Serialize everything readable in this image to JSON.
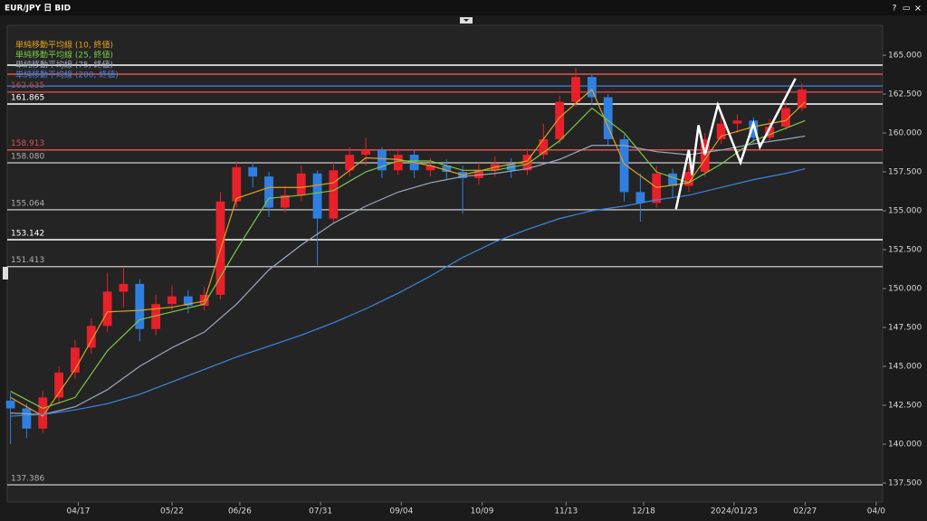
{
  "chart_data": {
    "type": "candlestick",
    "title": "EUR/JPY 日 BID",
    "window_buttons": [
      "?",
      "▭",
      "×"
    ],
    "xlim": [
      -1,
      270
    ],
    "ylim": [
      136.28,
      166.92
    ],
    "yticks": [
      {
        "value": 137.5,
        "label": "137.500"
      },
      {
        "value": 140,
        "label": "140.000"
      },
      {
        "value": 142.5,
        "label": "142.500"
      },
      {
        "value": 145,
        "label": "145.000"
      },
      {
        "value": 147.5,
        "label": "147.500"
      },
      {
        "value": 150,
        "label": "150.000"
      },
      {
        "value": 152.5,
        "label": "152.500"
      },
      {
        "value": 155,
        "label": "155.000"
      },
      {
        "value": 157.5,
        "label": "157.500"
      },
      {
        "value": 160,
        "label": "160.000"
      },
      {
        "value": 162.5,
        "label": "162.500"
      },
      {
        "value": 165,
        "label": "165.000"
      }
    ],
    "xticks": [
      {
        "value": 21,
        "label": "04/17"
      },
      {
        "value": 50,
        "label": "05/22"
      },
      {
        "value": 71,
        "label": "06/26"
      },
      {
        "value": 96,
        "label": "07/31"
      },
      {
        "value": 121,
        "label": "09/04"
      },
      {
        "value": 146,
        "label": "10/09"
      },
      {
        "value": 172,
        "label": "11/13"
      },
      {
        "value": 196,
        "label": "12/18"
      },
      {
        "value": 224,
        "label": "2024/01/23"
      },
      {
        "value": 246,
        "label": "02/27"
      },
      {
        "value": 268,
        "label": "04/0"
      }
    ],
    "up_color": "#e8202a",
    "down_color": "#2f7fe0",
    "candles": {
      "x": [
        0,
        5,
        10,
        15,
        20,
        25,
        30,
        35,
        40,
        45,
        50,
        55,
        60,
        65,
        70,
        75,
        80,
        85,
        90,
        95,
        100,
        105,
        110,
        115,
        120,
        125,
        130,
        135,
        140,
        145,
        150,
        155,
        160,
        165,
        170,
        175,
        180,
        185,
        190,
        195,
        200,
        205,
        210,
        215,
        220,
        225,
        230,
        235,
        240,
        245
      ],
      "open": [
        142.8,
        142.3,
        141.0,
        143.0,
        144.6,
        146.2,
        147.6,
        149.8,
        150.3,
        147.4,
        149.0,
        149.5,
        148.9,
        149.6,
        155.6,
        157.8,
        157.2,
        155.2,
        156.0,
        157.4,
        154.5,
        157.6,
        158.6,
        158.9,
        157.6,
        158.6,
        157.6,
        157.9,
        157.5,
        157.1,
        157.6,
        158.0,
        157.6,
        158.6,
        159.6,
        162.0,
        163.6,
        162.3,
        159.6,
        156.2,
        155.5,
        157.4,
        156.6,
        157.5,
        159.6,
        160.6,
        160.8,
        159.7,
        160.4,
        161.6
      ],
      "high": [
        143.3,
        142.6,
        143.4,
        145.0,
        146.7,
        148.1,
        151.0,
        151.4,
        150.6,
        149.6,
        150.2,
        149.9,
        150.1,
        156.2,
        158.2,
        158.1,
        157.5,
        156.6,
        157.9,
        157.6,
        158.1,
        159.1,
        159.7,
        159.1,
        159.0,
        158.9,
        158.4,
        158.3,
        157.9,
        158.1,
        158.5,
        158.4,
        159.0,
        160.6,
        162.4,
        164.2,
        163.8,
        162.5,
        159.9,
        157.4,
        157.9,
        157.7,
        158.0,
        160.0,
        161.3,
        161.2,
        161.0,
        160.9,
        162.0,
        163.2
      ],
      "low": [
        140.0,
        140.4,
        140.7,
        142.6,
        144.2,
        145.8,
        147.2,
        148.8,
        146.6,
        147.0,
        148.6,
        148.4,
        148.6,
        149.3,
        155.2,
        156.5,
        154.6,
        154.9,
        155.6,
        151.5,
        154.2,
        157.2,
        157.9,
        157.1,
        157.3,
        157.1,
        157.2,
        157.0,
        154.8,
        156.7,
        157.2,
        157.1,
        157.3,
        158.3,
        159.3,
        161.7,
        161.8,
        159.2,
        155.6,
        154.3,
        155.2,
        155.8,
        156.2,
        157.2,
        159.3,
        160.0,
        159.3,
        159.4,
        160.2,
        161.4
      ],
      "close": [
        142.3,
        141.0,
        143.0,
        144.6,
        146.2,
        147.6,
        149.8,
        150.3,
        147.4,
        149.0,
        149.5,
        148.9,
        149.6,
        155.6,
        157.8,
        157.2,
        155.2,
        156.0,
        157.4,
        154.5,
        157.6,
        158.6,
        158.9,
        157.6,
        158.6,
        157.6,
        157.9,
        157.5,
        157.1,
        157.6,
        158.0,
        157.6,
        158.6,
        159.6,
        162.0,
        163.6,
        162.3,
        159.6,
        156.2,
        155.5,
        157.4,
        156.6,
        157.5,
        159.6,
        160.6,
        160.8,
        159.7,
        160.4,
        161.6,
        162.8
      ]
    },
    "indicator_x": [
      0,
      10,
      20,
      30,
      40,
      50,
      60,
      70,
      80,
      90,
      100,
      110,
      120,
      130,
      140,
      150,
      160,
      170,
      180,
      190,
      200,
      210,
      220,
      230,
      240,
      246
    ],
    "indicators": [
      {
        "name": "単純移動平均線 (10, 終値)",
        "color": "#e0a020",
        "values": [
          143.0,
          141.8,
          144.8,
          148.5,
          148.6,
          148.8,
          149.2,
          155.8,
          156.5,
          156.5,
          156.8,
          158.4,
          158.3,
          157.9,
          157.3,
          157.8,
          158.2,
          161.0,
          162.8,
          158.0,
          156.5,
          156.8,
          159.8,
          160.4,
          160.8,
          162.0
        ]
      },
      {
        "name": "単純移動平均線 (25, 終値)",
        "color": "#7ac943",
        "values": [
          143.4,
          142.3,
          143.0,
          146.0,
          148.0,
          148.5,
          149.0,
          152.5,
          155.8,
          156.0,
          156.3,
          157.5,
          158.2,
          158.2,
          157.6,
          157.6,
          158.0,
          159.5,
          161.6,
          160.0,
          157.5,
          156.8,
          158.0,
          159.5,
          160.3,
          160.8
        ]
      },
      {
        "name": "単純移動平均線 (75, 終値)",
        "color": "#9aa8c0",
        "values": [
          142.0,
          141.9,
          142.4,
          143.5,
          145.0,
          146.2,
          147.2,
          149.0,
          151.2,
          152.8,
          154.2,
          155.3,
          156.2,
          156.8,
          157.2,
          157.4,
          157.7,
          158.3,
          159.2,
          159.2,
          158.8,
          158.6,
          158.9,
          159.3,
          159.6,
          159.8
        ]
      },
      {
        "name": "単純移動平均線 (200, 終値)",
        "color": "#3a86e0",
        "values": [
          141.8,
          141.9,
          142.2,
          142.6,
          143.2,
          144.0,
          144.8,
          145.6,
          146.3,
          147.0,
          147.8,
          148.7,
          149.7,
          150.8,
          152.0,
          153.0,
          153.8,
          154.5,
          155.0,
          155.3,
          155.7,
          156.0,
          156.5,
          157.0,
          157.4,
          157.7
        ]
      }
    ],
    "levels": [
      {
        "value": 164.36,
        "color": "#ffffff"
      },
      {
        "value": 163.78,
        "color": "#e05050"
      },
      {
        "value": 163.02,
        "color": "#3a6fc0"
      },
      {
        "value": 162.635,
        "label": "162.635",
        "color": "#c04848"
      },
      {
        "value": 161.865,
        "label": "161.865",
        "color": "#ffffff"
      },
      {
        "value": 158.913,
        "label": "158.913",
        "color": "#e05050"
      },
      {
        "value": 158.08,
        "label": "158.080",
        "color": "#b0b0b0"
      },
      {
        "value": 155.064,
        "label": "155.064",
        "color": "#b0b0b0"
      },
      {
        "value": 153.142,
        "label": "153.142",
        "color": "#ffffff"
      },
      {
        "value": 151.413,
        "label": "151.413",
        "color": "#b0b0b0"
      },
      {
        "value": 137.386,
        "label": "137.386",
        "color": "#b0b0b0"
      }
    ],
    "drawing": {
      "color": "#ffffff",
      "x": [
        206,
        210,
        211,
        213,
        215,
        219,
        226,
        230,
        232,
        243
      ],
      "y": [
        155.1,
        158.9,
        157.3,
        160.5,
        158.6,
        161.8,
        158.1,
        160.6,
        159.1,
        163.5
      ]
    }
  }
}
